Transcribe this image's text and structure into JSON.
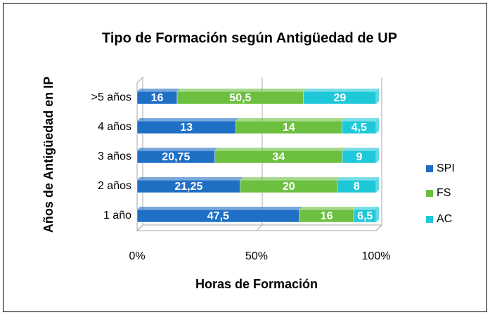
{
  "chart_data": {
    "type": "bar",
    "orientation": "horizontal",
    "stacked": "percent",
    "title": "Tipo de Formación según Antigüedad de UP",
    "x_label": "Horas de Formación",
    "y_label": "Años de Antigüedad en IP",
    "categories": [
      ">5 años",
      "4 años",
      "3 años",
      "2 años",
      "1 año"
    ],
    "series": [
      {
        "name": "SPI",
        "color": "#1f6fc5",
        "values": [
          16,
          13,
          20.75,
          21.25,
          47.5
        ],
        "value_labels": [
          "16",
          "13",
          "20,75",
          "21,25",
          "47,5"
        ]
      },
      {
        "name": "FS",
        "color": "#6cbf3f",
        "values": [
          50.5,
          14,
          34,
          20,
          16
        ],
        "value_labels": [
          "50,5",
          "14",
          "34",
          "20",
          "16"
        ]
      },
      {
        "name": "AC",
        "color": "#1fc8d8",
        "values": [
          29,
          4.5,
          9,
          8,
          6.5
        ],
        "value_labels": [
          "29",
          "4,5",
          "9",
          "8",
          "6,5"
        ]
      }
    ],
    "xlim": [
      0,
      100
    ],
    "xticks": [
      {
        "value": 0,
        "label": "0%"
      },
      {
        "value": 50,
        "label": "50%"
      },
      {
        "value": 100,
        "label": "100%"
      }
    ],
    "grid": true,
    "legend": "right"
  }
}
